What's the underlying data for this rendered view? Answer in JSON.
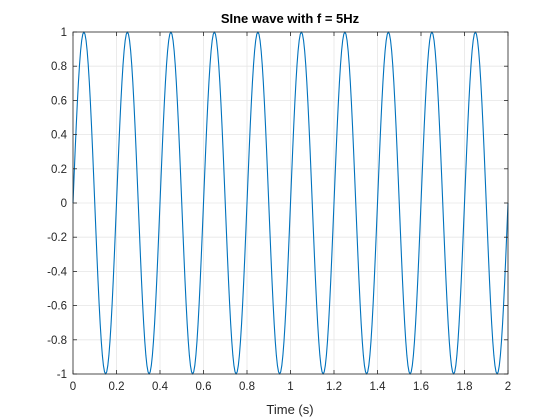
{
  "chart_data": {
    "type": "line",
    "title": "SIne wave with f = 5Hz",
    "xlabel": "Time (s)",
    "ylabel": "",
    "xlim": [
      0,
      2
    ],
    "ylim": [
      -1,
      1
    ],
    "grid": true,
    "frequency_hz": 5,
    "amplitude": 1,
    "x_ticks": [
      0,
      0.2,
      0.4,
      0.6,
      0.8,
      1,
      1.2,
      1.4,
      1.6,
      1.8,
      2
    ],
    "x_tick_labels": [
      "0",
      "0.2",
      "0.4",
      "0.6",
      "0.8",
      "1",
      "1.2",
      "1.4",
      "1.6",
      "1.8",
      "2"
    ],
    "y_ticks": [
      -1,
      -0.8,
      -0.6,
      -0.4,
      -0.2,
      0,
      0.2,
      0.4,
      0.6,
      0.8,
      1
    ],
    "y_tick_labels": [
      "-1",
      "-0.8",
      "-0.6",
      "-0.4",
      "-0.2",
      "0",
      "0.2",
      "0.4",
      "0.6",
      "0.8",
      "1"
    ],
    "series": [
      {
        "function": "y = sin(2*pi*5*x)",
        "x_start": 0,
        "x_end": 2,
        "x_step": 0.005,
        "color": "#0072BD"
      }
    ]
  }
}
